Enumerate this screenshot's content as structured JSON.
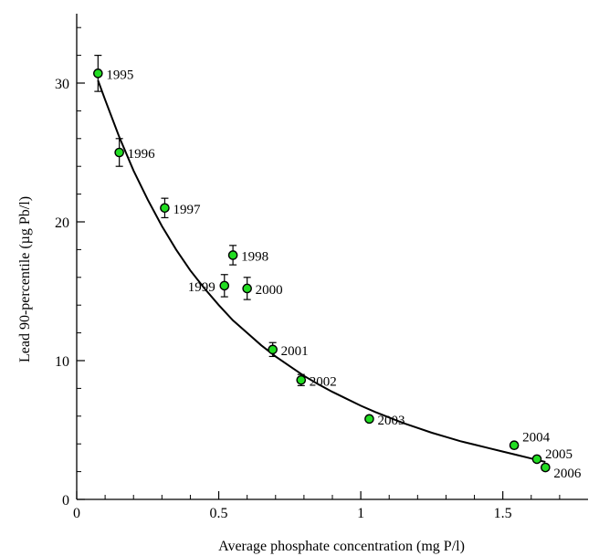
{
  "chart_data": {
    "type": "scatter",
    "xlabel": "Average phosphate concentration (mg P/l)",
    "ylabel": "Lead 90-percentile (µg Pb/l)",
    "xlim": [
      0,
      1.8
    ],
    "ylim": [
      0,
      35
    ],
    "x_ticks": [
      0,
      0.5,
      1,
      1.5
    ],
    "x_tick_labels": [
      "0",
      "0.5",
      "1",
      "1.5"
    ],
    "y_ticks": [
      0,
      10,
      20,
      30
    ],
    "y_tick_labels": [
      "0",
      "10",
      "20",
      "30"
    ],
    "grid": false,
    "marker_color": "#22dd22",
    "points": [
      {
        "label": "1995",
        "x": 0.075,
        "y": 30.7,
        "err": 1.3
      },
      {
        "label": "1996",
        "x": 0.15,
        "y": 25.0,
        "err": 1.0
      },
      {
        "label": "1997",
        "x": 0.31,
        "y": 21.0,
        "err": 0.7
      },
      {
        "label": "1998",
        "x": 0.55,
        "y": 17.6,
        "err": 0.7
      },
      {
        "label": "1999",
        "x": 0.52,
        "y": 15.4,
        "err": 0.8
      },
      {
        "label": "2000",
        "x": 0.6,
        "y": 15.2,
        "err": 0.8
      },
      {
        "label": "2001",
        "x": 0.69,
        "y": 10.8,
        "err": 0.5
      },
      {
        "label": "2002",
        "x": 0.79,
        "y": 8.6,
        "err": 0.4
      },
      {
        "label": "2003",
        "x": 1.03,
        "y": 5.8,
        "err": 0.2
      },
      {
        "label": "2004",
        "x": 1.54,
        "y": 3.9,
        "err": 0.2
      },
      {
        "label": "2005",
        "x": 1.62,
        "y": 2.9,
        "err": 0.2
      },
      {
        "label": "2006",
        "x": 1.65,
        "y": 2.3,
        "err": 0.2
      }
    ],
    "fit_curve": {
      "x": [
        0.075,
        0.1,
        0.15,
        0.2,
        0.25,
        0.3,
        0.35,
        0.4,
        0.45,
        0.5,
        0.55,
        0.6,
        0.65,
        0.7,
        0.75,
        0.8,
        0.85,
        0.9,
        0.95,
        1.0,
        1.05,
        1.1,
        1.15,
        1.2,
        1.25,
        1.3,
        1.35,
        1.4,
        1.45,
        1.5,
        1.55,
        1.6,
        1.65
      ],
      "y": [
        30.2,
        28.8,
        26.1,
        23.7,
        21.6,
        19.7,
        18.0,
        16.5,
        15.2,
        14.0,
        12.9,
        12.0,
        11.1,
        10.3,
        9.6,
        8.9,
        8.3,
        7.75,
        7.25,
        6.75,
        6.3,
        5.9,
        5.5,
        5.15,
        4.8,
        4.5,
        4.2,
        3.95,
        3.7,
        3.45,
        3.2,
        2.95,
        2.7
      ]
    }
  }
}
